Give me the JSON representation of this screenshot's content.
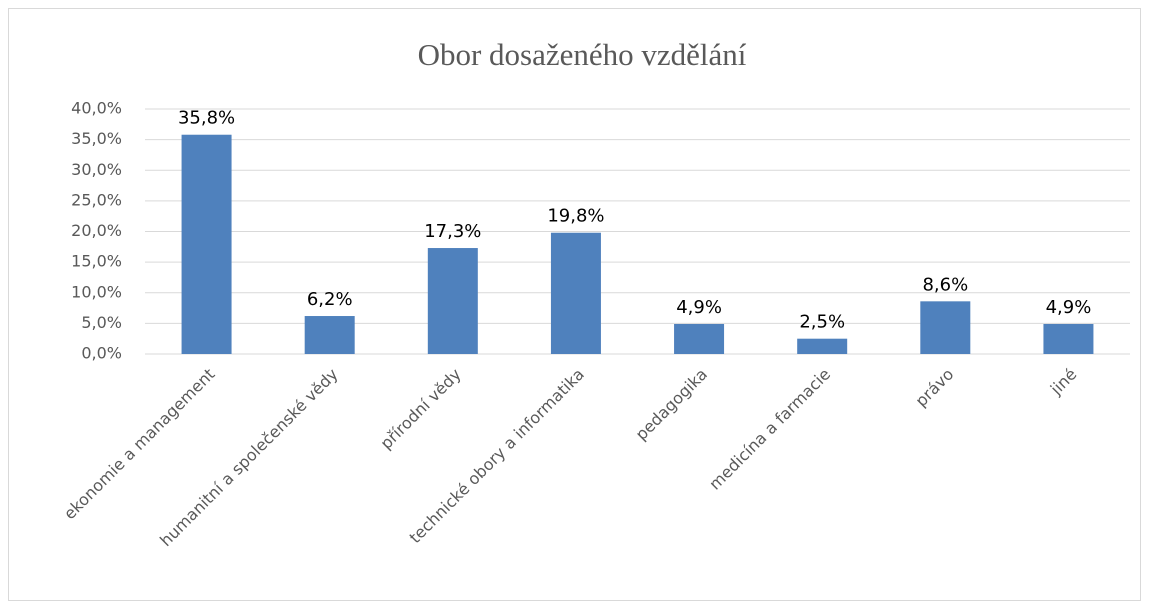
{
  "chart_data": {
    "type": "bar",
    "title": "Obor dosaženého vzdělání",
    "categories": [
      "ekonomie a management",
      "humanitní a společenské vědy",
      "přírodní vědy",
      "technické obory a informatika",
      "pedagogika",
      "medicína a farmacie",
      "právo",
      "jiné"
    ],
    "values": [
      35.8,
      6.2,
      17.3,
      19.8,
      4.9,
      2.5,
      8.6,
      4.9
    ],
    "value_labels": [
      "35,8%",
      "6,2%",
      "17,3%",
      "19,8%",
      "4,9%",
      "2,5%",
      "8,6%",
      "4,9%"
    ],
    "color": "#4f81bd",
    "ylim": [
      0,
      40
    ],
    "yticks": [
      {
        "value": 0,
        "label": "0,0%"
      },
      {
        "value": 5,
        "label": "5,0%"
      },
      {
        "value": 10,
        "label": "10,0%"
      },
      {
        "value": 15,
        "label": "15,0%"
      },
      {
        "value": 20,
        "label": "20,0%"
      },
      {
        "value": 25,
        "label": "25,0%"
      },
      {
        "value": 30,
        "label": "30,0%"
      },
      {
        "value": 35,
        "label": "35,0%"
      },
      {
        "value": 40,
        "label": "40,0%"
      }
    ],
    "grid": true
  }
}
